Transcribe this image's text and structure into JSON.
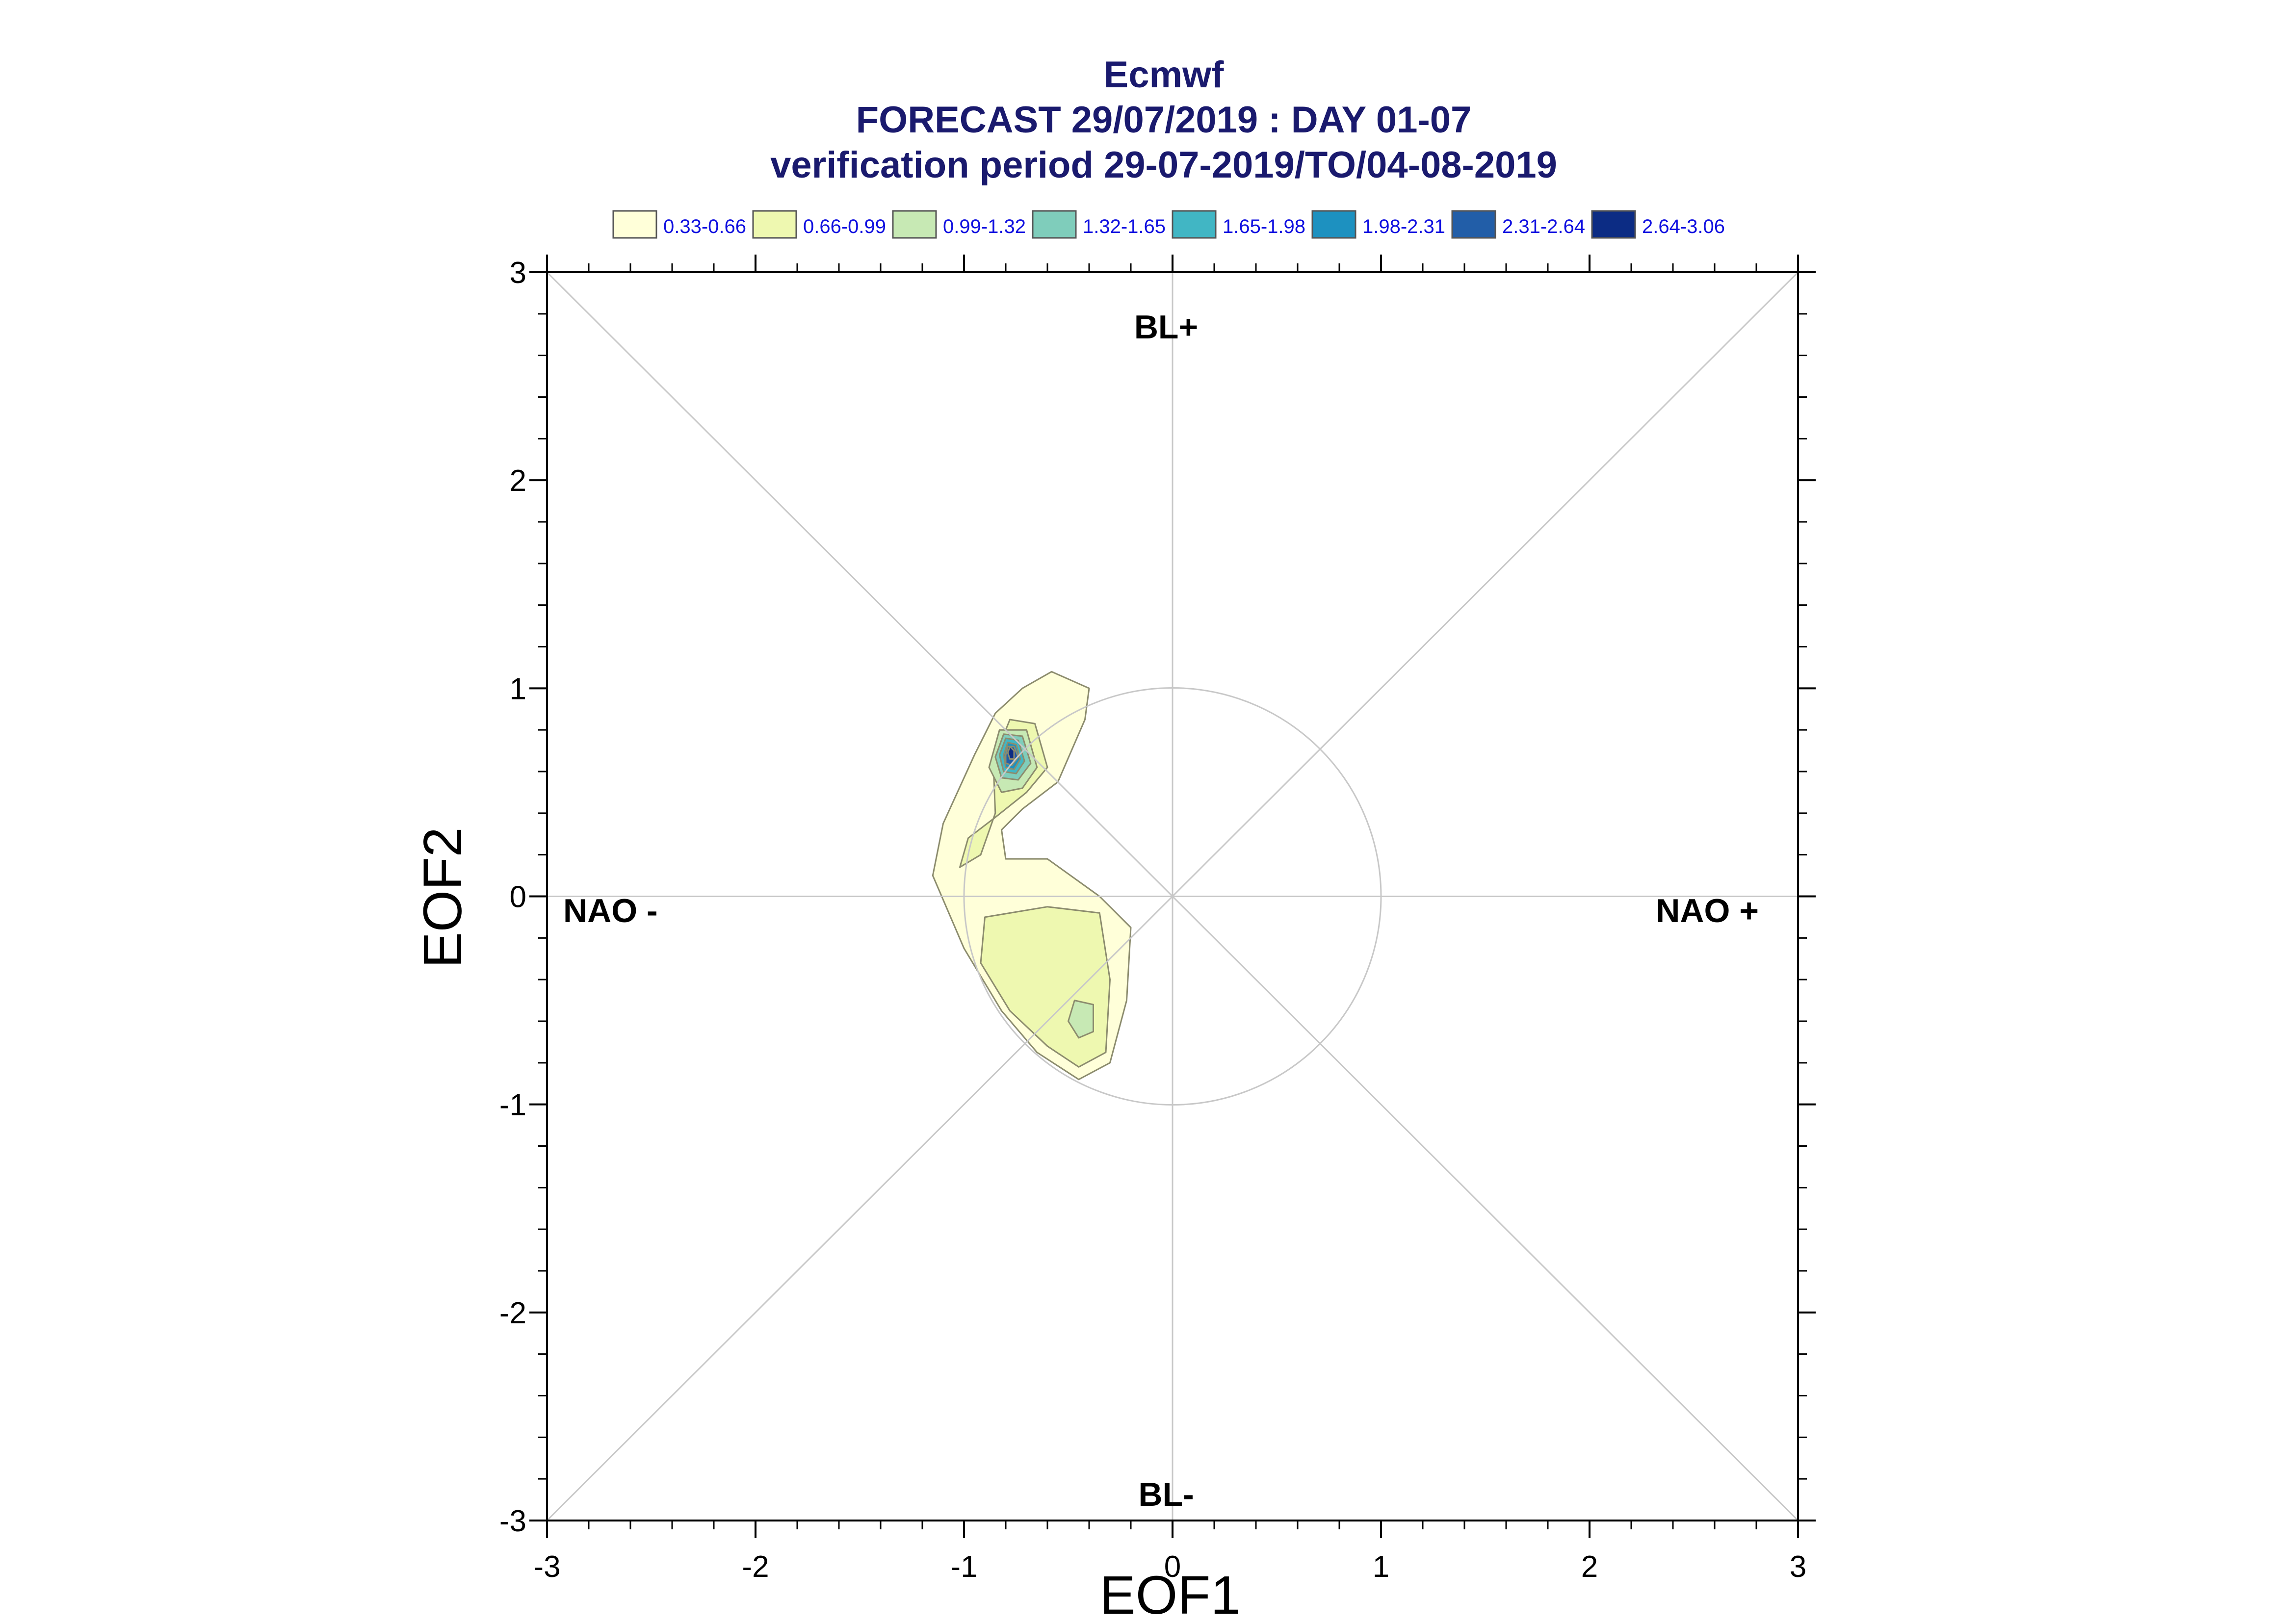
{
  "chart_data": {
    "type": "contour",
    "title": "Ecmwf",
    "subtitle": "FORECAST 29/07/2019 : DAY 01-07",
    "subtitle2": "verification period 29-07-2019/TO/04-08-2019",
    "xlabel": "EOF1",
    "ylabel": "EOF2",
    "xlim": [
      -3,
      3
    ],
    "ylim": [
      -3,
      3
    ],
    "x_ticks": [
      "-3",
      "-2",
      "-1",
      "0",
      "1",
      "2",
      "3"
    ],
    "y_ticks": [
      "-3",
      "-2",
      "-1",
      "0",
      "1",
      "2",
      "3"
    ],
    "x_tick_values": [
      -3,
      -2,
      -1,
      0,
      1,
      2,
      3
    ],
    "y_tick_values": [
      -3,
      -2,
      -1,
      0,
      1,
      2,
      3
    ],
    "grid": false,
    "reference_circle_radius": 1,
    "regime_labels": {
      "top": "BL+",
      "bottom": "BL-",
      "left": "NAO -",
      "right": "NAO +"
    },
    "legend": {
      "placement": "top",
      "entries": [
        {
          "label": "0.33-0.66",
          "color": "#ffffd9"
        },
        {
          "label": "0.66-0.99",
          "color": "#eef8b0"
        },
        {
          "label": "0.99-1.32",
          "color": "#c7e9b4"
        },
        {
          "label": "1.32-1.65",
          "color": "#7fcdbb"
        },
        {
          "label": "1.65-1.98",
          "color": "#41b6c4"
        },
        {
          "label": "1.98-2.31",
          "color": "#1d91c0"
        },
        {
          "label": "2.31-2.64",
          "color": "#225ea8"
        },
        {
          "label": "2.64-3.06",
          "color": "#0c2c84"
        }
      ]
    },
    "density_regions": [
      {
        "level": 0,
        "polygon": [
          [
            -0.72,
            1.0
          ],
          [
            -0.58,
            1.08
          ],
          [
            -0.4,
            1.0
          ],
          [
            -0.42,
            0.85
          ],
          [
            -0.55,
            0.55
          ],
          [
            -0.72,
            0.42
          ],
          [
            -0.82,
            0.32
          ],
          [
            -0.8,
            0.18
          ],
          [
            -0.6,
            0.18
          ],
          [
            -0.35,
            0.0
          ],
          [
            -0.2,
            -0.15
          ],
          [
            -0.22,
            -0.5
          ],
          [
            -0.3,
            -0.8
          ],
          [
            -0.45,
            -0.88
          ],
          [
            -0.65,
            -0.75
          ],
          [
            -0.82,
            -0.55
          ],
          [
            -1.0,
            -0.25
          ],
          [
            -1.15,
            0.1
          ],
          [
            -1.1,
            0.35
          ],
          [
            -0.95,
            0.68
          ],
          [
            -0.85,
            0.88
          ]
        ]
      },
      {
        "level": 1,
        "polygon": [
          [
            -0.78,
            0.85
          ],
          [
            -0.66,
            0.83
          ],
          [
            -0.6,
            0.62
          ],
          [
            -0.7,
            0.5
          ],
          [
            -0.85,
            0.38
          ],
          [
            -0.98,
            0.28
          ],
          [
            -1.02,
            0.14
          ],
          [
            -0.92,
            0.2
          ],
          [
            -0.85,
            0.4
          ],
          [
            -0.86,
            0.65
          ]
        ]
      },
      {
        "level": 1,
        "polygon": [
          [
            -0.9,
            -0.1
          ],
          [
            -0.6,
            -0.05
          ],
          [
            -0.35,
            -0.08
          ],
          [
            -0.3,
            -0.4
          ],
          [
            -0.32,
            -0.75
          ],
          [
            -0.45,
            -0.82
          ],
          [
            -0.6,
            -0.72
          ],
          [
            -0.78,
            -0.55
          ],
          [
            -0.92,
            -0.32
          ]
        ]
      },
      {
        "level": 2,
        "polygon": [
          [
            -0.83,
            0.8
          ],
          [
            -0.7,
            0.8
          ],
          [
            -0.65,
            0.62
          ],
          [
            -0.72,
            0.52
          ],
          [
            -0.82,
            0.5
          ],
          [
            -0.88,
            0.62
          ]
        ]
      },
      {
        "level": 2,
        "polygon": [
          [
            -0.47,
            -0.5
          ],
          [
            -0.38,
            -0.52
          ],
          [
            -0.38,
            -0.65
          ],
          [
            -0.45,
            -0.68
          ],
          [
            -0.5,
            -0.6
          ]
        ]
      },
      {
        "level": 3,
        "polygon": [
          [
            -0.81,
            0.78
          ],
          [
            -0.72,
            0.77
          ],
          [
            -0.68,
            0.64
          ],
          [
            -0.74,
            0.56
          ],
          [
            -0.82,
            0.57
          ],
          [
            -0.85,
            0.67
          ]
        ]
      },
      {
        "level": 4,
        "polygon": [
          [
            -0.8,
            0.76
          ],
          [
            -0.74,
            0.75
          ],
          [
            -0.71,
            0.65
          ],
          [
            -0.75,
            0.59
          ],
          [
            -0.81,
            0.6
          ],
          [
            -0.83,
            0.68
          ]
        ]
      },
      {
        "level": 5,
        "polygon": [
          [
            -0.79,
            0.74
          ],
          [
            -0.75,
            0.73
          ],
          [
            -0.73,
            0.66
          ],
          [
            -0.76,
            0.61
          ],
          [
            -0.8,
            0.62
          ],
          [
            -0.81,
            0.68
          ]
        ]
      },
      {
        "level": 6,
        "polygon": [
          [
            -0.79,
            0.72
          ],
          [
            -0.76,
            0.72
          ],
          [
            -0.74,
            0.67
          ],
          [
            -0.77,
            0.63
          ],
          [
            -0.8,
            0.64
          ],
          [
            -0.8,
            0.68
          ]
        ]
      },
      {
        "level": 7,
        "polygon": [
          [
            -0.78,
            0.72
          ],
          [
            -0.76,
            0.7
          ],
          [
            -0.76,
            0.66
          ],
          [
            -0.78,
            0.66
          ],
          [
            -0.79,
            0.69
          ]
        ]
      }
    ]
  }
}
